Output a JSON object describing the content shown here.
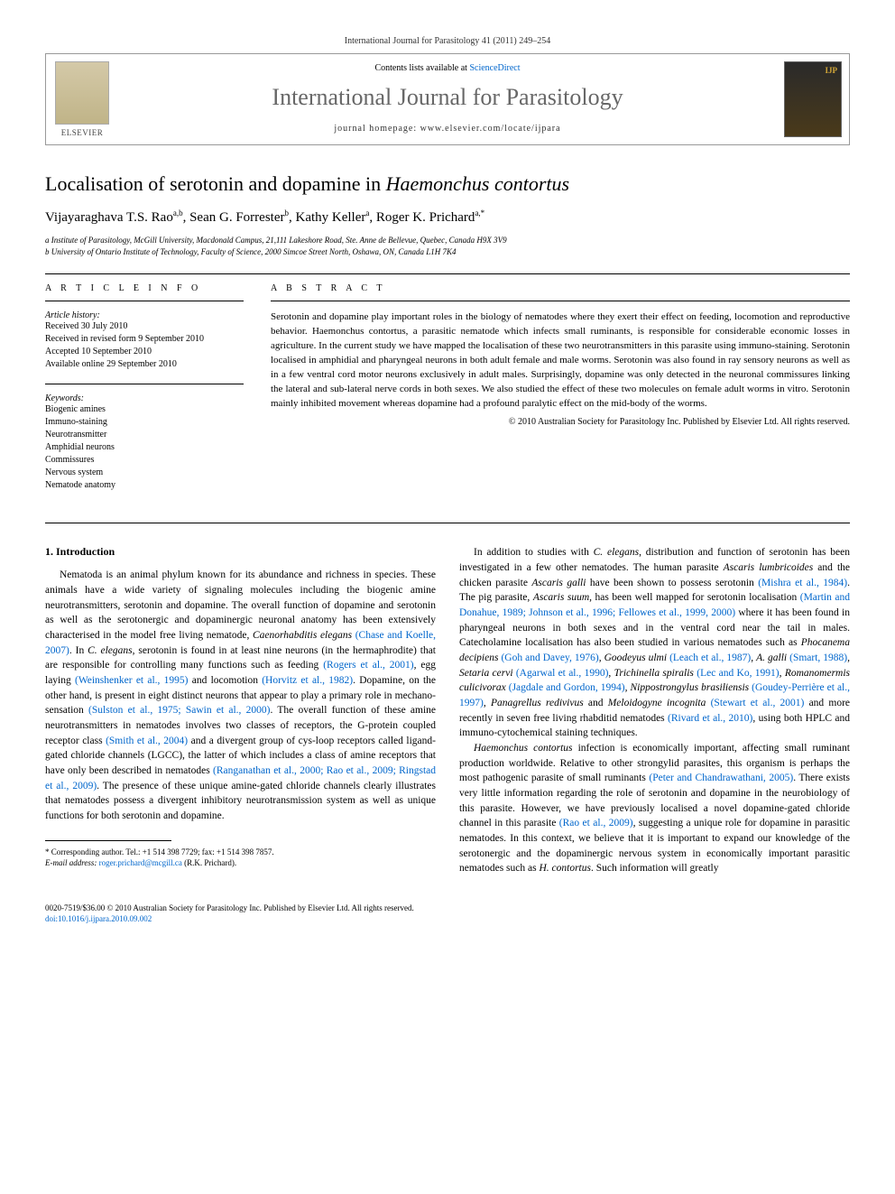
{
  "header": {
    "journal_ref": "International Journal for Parasitology 41 (2011) 249–254",
    "contents_prefix": "Contents lists available at ",
    "contents_link": "ScienceDirect",
    "journal_title": "International Journal for Parasitology",
    "homepage_prefix": "journal homepage: ",
    "homepage_url": "www.elsevier.com/locate/ijpara",
    "publisher_label": "ELSEVIER",
    "cover_badge": "IJP"
  },
  "article": {
    "title_pre": "Localisation of serotonin and dopamine in ",
    "title_italic": "Haemonchus contortus",
    "authors": "Vijayaraghava T.S. Rao",
    "author1_sup": "a,b",
    "author2": ", Sean G. Forrester",
    "author2_sup": "b",
    "author3": ", Kathy Keller",
    "author3_sup": "a",
    "author4": ", Roger K. Prichard",
    "author4_sup": "a,*",
    "affil_a": "a Institute of Parasitology, McGill University, Macdonald Campus, 21,111 Lakeshore Road, Ste. Anne de Bellevue, Quebec, Canada H9X 3V9",
    "affil_b": "b University of Ontario Institute of Technology, Faculty of Science, 2000 Simcoe Street North, Oshawa, ON, Canada L1H 7K4"
  },
  "info": {
    "heading": "A R T I C L E   I N F O",
    "history_head": "Article history:",
    "received": "Received 30 July 2010",
    "revised": "Received in revised form 9 September 2010",
    "accepted": "Accepted 10 September 2010",
    "online": "Available online 29 September 2010",
    "keywords_head": "Keywords:",
    "kw1": "Biogenic amines",
    "kw2": "Immuno-staining",
    "kw3": "Neurotransmitter",
    "kw4": "Amphidial neurons",
    "kw5": "Commissures",
    "kw6": "Nervous system",
    "kw7": "Nematode anatomy"
  },
  "abstract": {
    "heading": "A B S T R A C T",
    "text": "Serotonin and dopamine play important roles in the biology of nematodes where they exert their effect on feeding, locomotion and reproductive behavior. Haemonchus contortus, a parasitic nematode which infects small ruminants, is responsible for considerable economic losses in agriculture. In the current study we have mapped the localisation of these two neurotransmitters in this parasite using immuno-staining. Serotonin localised in amphidial and pharyngeal neurons in both adult female and male worms. Serotonin was also found in ray sensory neurons as well as in a few ventral cord motor neurons exclusively in adult males. Surprisingly, dopamine was only detected in the neuronal commissures linking the lateral and sub-lateral nerve cords in both sexes. We also studied the effect of these two molecules on female adult worms in vitro. Serotonin mainly inhibited movement whereas dopamine had a profound paralytic effect on the mid-body of the worms.",
    "copyright": "© 2010 Australian Society for Parasitology Inc. Published by Elsevier Ltd. All rights reserved."
  },
  "body": {
    "section1_heading": "1. Introduction",
    "col1_p1a": "Nematoda is an animal phylum known for its abundance and richness in species. These animals have a wide variety of signaling molecules including the biogenic amine neurotransmitters, serotonin and dopamine. The overall function of dopamine and serotonin as well as the serotonergic and dopaminergic neuronal anatomy has been extensively characterised in the model free living nematode, ",
    "col1_p1a_it": "Caenorhabditis elegans ",
    "col1_c1": "(Chase and Koelle, 2007)",
    "col1_p1b": ". In ",
    "col1_p1b_it": "C. elegans",
    "col1_p1c": ", serotonin is found in at least nine neurons (in the hermaphrodite) that are responsible for controlling many functions such as feeding ",
    "col1_c2": "(Rogers et al., 2001)",
    "col1_p1d": ", egg laying ",
    "col1_c3": "(Weinshenker et al., 1995)",
    "col1_p1e": " and locomotion ",
    "col1_c4": "(Horvitz et al., 1982)",
    "col1_p1f": ". Dopamine, on the other hand, is present in eight distinct neurons that appear to play a primary role in mechano-sensation ",
    "col1_c5": "(Sulston et al., 1975; Sawin et al., 2000)",
    "col1_p1g": ". The overall function of these amine neurotransmitters in nematodes involves two classes of receptors, the G-protein coupled receptor class ",
    "col1_c6": "(Smith et al., 2004)",
    "col1_p1h": " and a divergent group of cys-loop receptors called ligand-gated chloride channels (LGCC), the latter of which includes a class of amine receptors that have only been described in nematodes ",
    "col1_c7": "(Ranganathan et al., 2000; Rao et al., 2009; Ringstad et al., 2009)",
    "col1_p1i": ". The presence of these unique amine-gated chloride channels clearly illustrates that nematodes possess a divergent inhibitory neurotransmission system as well as unique functions for both serotonin and dopamine.",
    "col2_p1a": "In addition to studies with ",
    "col2_p1a_it": "C. elegans",
    "col2_p1b": ", distribution and function of serotonin has been investigated in a few other nematodes. The human parasite ",
    "col2_p1b_it": "Ascaris lumbricoides",
    "col2_p1c": " and the chicken parasite ",
    "col2_p1c_it": "Ascaris galli",
    "col2_p1d": " have been shown to possess serotonin ",
    "col2_c1": "(Mishra et al., 1984)",
    "col2_p1e": ". The pig parasite, ",
    "col2_p1e_it": "Ascaris suum",
    "col2_p1f": ", has been well mapped for serotonin localisation ",
    "col2_c2": "(Martin and Donahue, 1989; Johnson et al., 1996; Fellowes et al., 1999, 2000)",
    "col2_p1g": " where it has been found in pharyngeal neurons in both sexes and in the ventral cord near the tail in males. Catecholamine localisation has also been studied in various nematodes such as ",
    "col2_p1g_it": "Phocanema decipiens ",
    "col2_c3": "(Goh and Davey, 1976)",
    "col2_p1h": ", ",
    "col2_p1h_it": "Goodeyus ulmi ",
    "col2_c4": "(Leach et al., 1987)",
    "col2_p1i": ", ",
    "col2_p1i_it": "A. galli ",
    "col2_c5": "(Smart, 1988)",
    "col2_p1j": ", ",
    "col2_p1j_it": "Setaria cervi ",
    "col2_c6": "(Agarwal et al., 1990)",
    "col2_p1k": ", ",
    "col2_p1k_it": "Trichinella spiralis ",
    "col2_c7": "(Lec and Ko, 1991)",
    "col2_p1l": ", ",
    "col2_p1l_it": "Romanomermis culicivorax ",
    "col2_c8": "(Jagdale and Gordon, 1994)",
    "col2_p1m": ", ",
    "col2_p1m_it": "Nippostrongylus brasiliensis ",
    "col2_c9": "(Goudey-Perrière et al., 1997)",
    "col2_p1n": ", ",
    "col2_p1n_it": "Panagrellus redivivus",
    "col2_p1o": " and ",
    "col2_p1o_it": "Meloidogyne incognita ",
    "col2_c10": "(Stewart et al., 2001)",
    "col2_p1p": " and more recently in seven free living rhabditid nematodes ",
    "col2_c11": "(Rivard et al., 2010)",
    "col2_p1q": ", using both HPLC and immuno-cytochemical staining techniques.",
    "col2_p2a_it": "Haemonchus contortus",
    "col2_p2a": " infection is economically important, affecting small ruminant production worldwide. Relative to other strongylid parasites, this organism is perhaps the most pathogenic parasite of small ruminants ",
    "col2_c12": "(Peter and Chandrawathani, 2005)",
    "col2_p2b": ". There exists very little information regarding the role of serotonin and dopamine in the neurobiology of this parasite. However, we have previously localised a novel dopamine-gated chloride channel in this parasite ",
    "col2_c13": "(Rao et al., 2009)",
    "col2_p2c": ", suggesting a unique role for dopamine in parasitic nematodes. In this context, we believe that it is important to expand our knowledge of the serotonergic and the dopaminergic nervous system in economically important parasitic nematodes such as ",
    "col2_p2c_it": "H. contortus",
    "col2_p2d": ". Such information will greatly"
  },
  "footnote": {
    "corr": "* Corresponding author. Tel.: +1 514 398 7729; fax: +1 514 398 7857.",
    "email_label": "E-mail address: ",
    "email": "roger.prichard@mcgill.ca",
    "email_suffix": " (R.K. Prichard)."
  },
  "footer": {
    "line1": "0020-7519/$36.00 © 2010 Australian Society for Parasitology Inc. Published by Elsevier Ltd. All rights reserved.",
    "line2": "doi:10.1016/j.ijpara.2010.09.002"
  },
  "colors": {
    "link": "#0066cc",
    "text": "#000000",
    "journal_title": "#676767",
    "border": "#999999"
  }
}
